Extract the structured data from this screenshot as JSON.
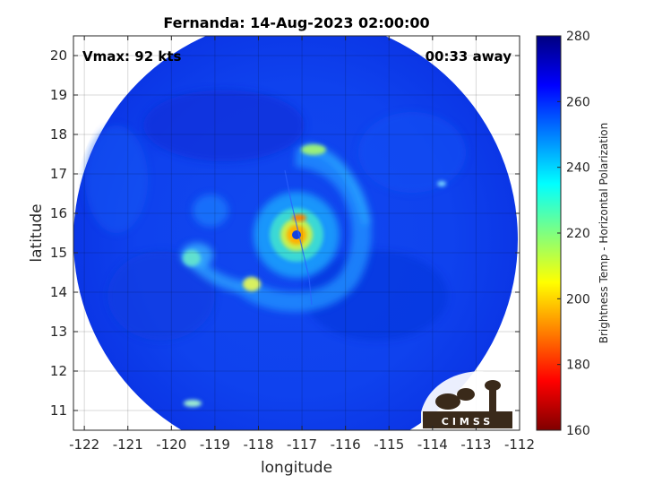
{
  "chart_data": {
    "type": "heatmap",
    "title": "Fernanda: 14-Aug-2023 02:00:00",
    "xlabel": "longitude",
    "ylabel": "latitude",
    "xlim": [
      -122.25,
      -112
    ],
    "ylim": [
      10.5,
      20.5
    ],
    "xticks": [
      -122,
      -121,
      -120,
      -119,
      -118,
      -117,
      -116,
      -115,
      -114,
      -113,
      -112
    ],
    "yticks": [
      11,
      12,
      13,
      14,
      15,
      16,
      17,
      18,
      19,
      20
    ],
    "grid": true,
    "annotations": {
      "vmax": "Vmax: 92 kts",
      "time_offset": "00:33 away"
    },
    "colorbar": {
      "label": "Brightness Temp - Horizontal Polarization",
      "range": [
        160,
        280
      ],
      "ticks": [
        160,
        180,
        200,
        220,
        240,
        260,
        280
      ],
      "colormap": "jet"
    },
    "storm": {
      "center_lon": -117.0,
      "center_lat": 15.45,
      "eye_temp_k": 268,
      "eyewall_min_temp_k": 200,
      "background_temp_k": 262
    },
    "swath": {
      "center_lon": -117.0,
      "center_lat": 15.45,
      "radius_deg": 5.35
    },
    "logo_text": "CIMSS"
  }
}
